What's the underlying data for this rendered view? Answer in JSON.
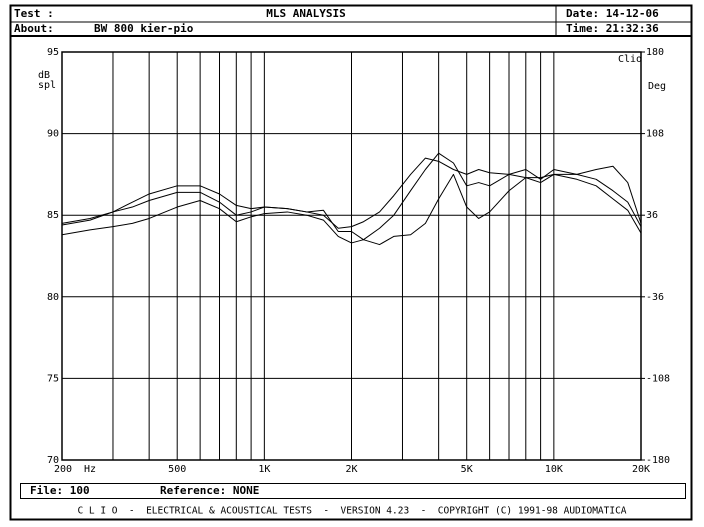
{
  "chart_data": {
    "type": "line",
    "title": "MLS ANALYSIS",
    "test_label": "Test :",
    "about_label": "About:",
    "about": "BW 800 kier-pio",
    "date": "Date: 14-12-06",
    "time": "Time: 21:32:36",
    "brand": "Clio",
    "ylabel": [
      "dB",
      "spl"
    ],
    "y2label": "Deg",
    "x_unit": "Hz",
    "file": "File: 100",
    "reference": "Reference: NONE",
    "footer": "C L I O  -  ELECTRICAL & ACOUSTICAL TESTS  -  VERSION 4.23  -  COPYRIGHT (C) 1991-98 AUDIOMATICA",
    "log_x": true,
    "grid": true,
    "xlim": [
      200,
      20000
    ],
    "xticks": [
      200,
      {
        "value": 500,
        "label": "500"
      },
      {
        "value": 1000,
        "label": "1K"
      },
      {
        "value": 2000,
        "label": "2K"
      },
      {
        "value": 5000,
        "label": "5K"
      },
      {
        "value": 10000,
        "label": "10K"
      },
      {
        "value": 20000,
        "label": "20K"
      }
    ],
    "xminor": [
      300,
      400,
      600,
      700,
      800,
      900,
      3000,
      4000,
      6000,
      7000,
      8000,
      9000
    ],
    "ylim": [
      70,
      95
    ],
    "yticks": [
      70,
      75,
      80,
      85,
      90,
      95
    ],
    "y2lim": [
      -180,
      180
    ],
    "y2ticks": [
      -180,
      -108,
      -36,
      36,
      108,
      180
    ],
    "x": [
      200,
      250,
      300,
      350,
      400,
      500,
      600,
      700,
      800,
      900,
      1000,
      1200,
      1400,
      1600,
      1800,
      2000,
      2200,
      2500,
      2800,
      3200,
      3600,
      4000,
      4500,
      5000,
      5500,
      6000,
      7000,
      8000,
      9000,
      10000,
      12000,
      14000,
      16000,
      18000,
      20000
    ],
    "series": [
      {
        "color": "#000000",
        "values": [
          84.4,
          84.7,
          85.2,
          85.8,
          86.3,
          86.8,
          86.8,
          86.3,
          85.6,
          85.4,
          85.5,
          85.4,
          85.2,
          85.0,
          84.2,
          84.3,
          84.6,
          85.2,
          86.2,
          87.5,
          88.5,
          88.3,
          87.8,
          87.5,
          87.8,
          87.6,
          87.5,
          87.8,
          87.2,
          87.8,
          87.5,
          87.2,
          86.5,
          85.8,
          84.3
        ]
      },
      {
        "color": "#000000",
        "values": [
          84.5,
          84.8,
          85.2,
          85.5,
          85.9,
          86.4,
          86.4,
          85.8,
          85.0,
          85.2,
          85.5,
          85.4,
          85.2,
          85.3,
          84.0,
          84.0,
          83.5,
          84.2,
          85.0,
          86.5,
          87.8,
          88.8,
          88.2,
          86.8,
          87.0,
          86.8,
          87.5,
          87.3,
          87.3,
          87.5,
          87.5,
          87.8,
          88.0,
          87.0,
          84.5
        ]
      },
      {
        "color": "#000000",
        "values": [
          83.8,
          84.1,
          84.3,
          84.5,
          84.8,
          85.5,
          85.9,
          85.4,
          84.6,
          84.9,
          85.1,
          85.2,
          85.0,
          84.7,
          83.7,
          83.3,
          83.5,
          83.2,
          83.7,
          83.8,
          84.5,
          86.0,
          87.5,
          85.5,
          84.8,
          85.2,
          86.5,
          87.3,
          87.0,
          87.5,
          87.2,
          86.8,
          86.0,
          85.3,
          83.9
        ]
      }
    ]
  }
}
